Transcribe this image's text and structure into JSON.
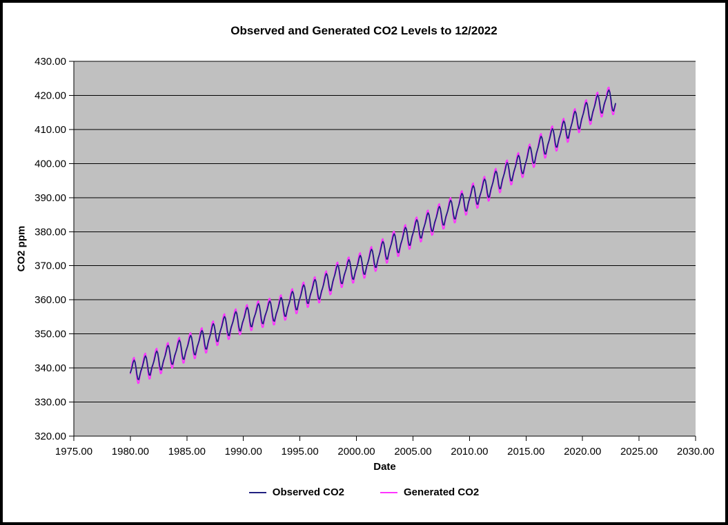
{
  "window": {
    "background": "#FFFFFF",
    "border_color": "#000000"
  },
  "chart_data": {
    "type": "line",
    "title": "Observed and Generated CO2 Levels to 12/2022",
    "xlabel": "Date",
    "ylabel": "CO2 ppm",
    "xlim": [
      1975,
      2030
    ],
    "ylim": [
      320,
      430
    ],
    "x_ticks": [
      1975,
      1980,
      1985,
      1990,
      1995,
      2000,
      2005,
      2010,
      2015,
      2020,
      2025,
      2030
    ],
    "y_ticks": [
      320,
      330,
      340,
      350,
      360,
      370,
      380,
      390,
      400,
      410,
      420,
      430
    ],
    "tick_label_decimals": 2,
    "grid": "horizontal-major",
    "grid_color": "#000000",
    "plot_background": "#C0C0C0",
    "axis_color": "#000000",
    "legend_position": "bottom-center",
    "data_start_year": 1980,
    "data_end_label": "12/2022",
    "n_months": 516,
    "annual_mean_years_start": 1980,
    "series": [
      {
        "name": "Generated CO2",
        "color": "#FF33FF",
        "annual_means": [
          338.9,
          340.1,
          341.4,
          343.1,
          344.7,
          346.1,
          347.4,
          349.2,
          351.6,
          353.1,
          354.4,
          355.6,
          356.4,
          357.1,
          358.8,
          360.8,
          362.6,
          363.7,
          366.7,
          368.4,
          369.5,
          371.1,
          373.3,
          375.8,
          377.5,
          379.8,
          381.9,
          383.8,
          385.6,
          387.4,
          389.9,
          391.7,
          393.9,
          396.5,
          398.7,
          400.8,
          404.2,
          406.6,
          408.5,
          411.4,
          414.2,
          416.4,
          418.6
        ],
        "seasonal_profile": [
          -0.6,
          0.9,
          2.3,
          3.6,
          3.8,
          2.4,
          -0.2,
          -2.8,
          -4.2,
          -4.2,
          -2.6,
          -1.4
        ]
      },
      {
        "name": "Observed CO2",
        "color": "#202080",
        "annual_means": [
          338.9,
          340.1,
          341.4,
          343.1,
          344.7,
          346.1,
          347.4,
          349.2,
          351.6,
          353.1,
          354.4,
          355.6,
          356.4,
          357.1,
          358.8,
          360.8,
          362.6,
          363.7,
          366.7,
          368.4,
          369.5,
          371.1,
          373.3,
          375.8,
          377.5,
          379.8,
          381.9,
          383.8,
          385.6,
          387.4,
          389.9,
          391.7,
          393.9,
          396.5,
          398.7,
          400.8,
          404.2,
          406.6,
          408.5,
          411.4,
          414.2,
          416.4,
          418.6
        ],
        "seasonal_profile": [
          -0.3,
          0.4,
          1.4,
          2.5,
          3.0,
          2.3,
          0.6,
          -1.6,
          -3.0,
          -3.2,
          -2.1,
          -1.0
        ]
      }
    ],
    "legend_order": [
      "Observed CO2",
      "Generated CO2"
    ]
  }
}
